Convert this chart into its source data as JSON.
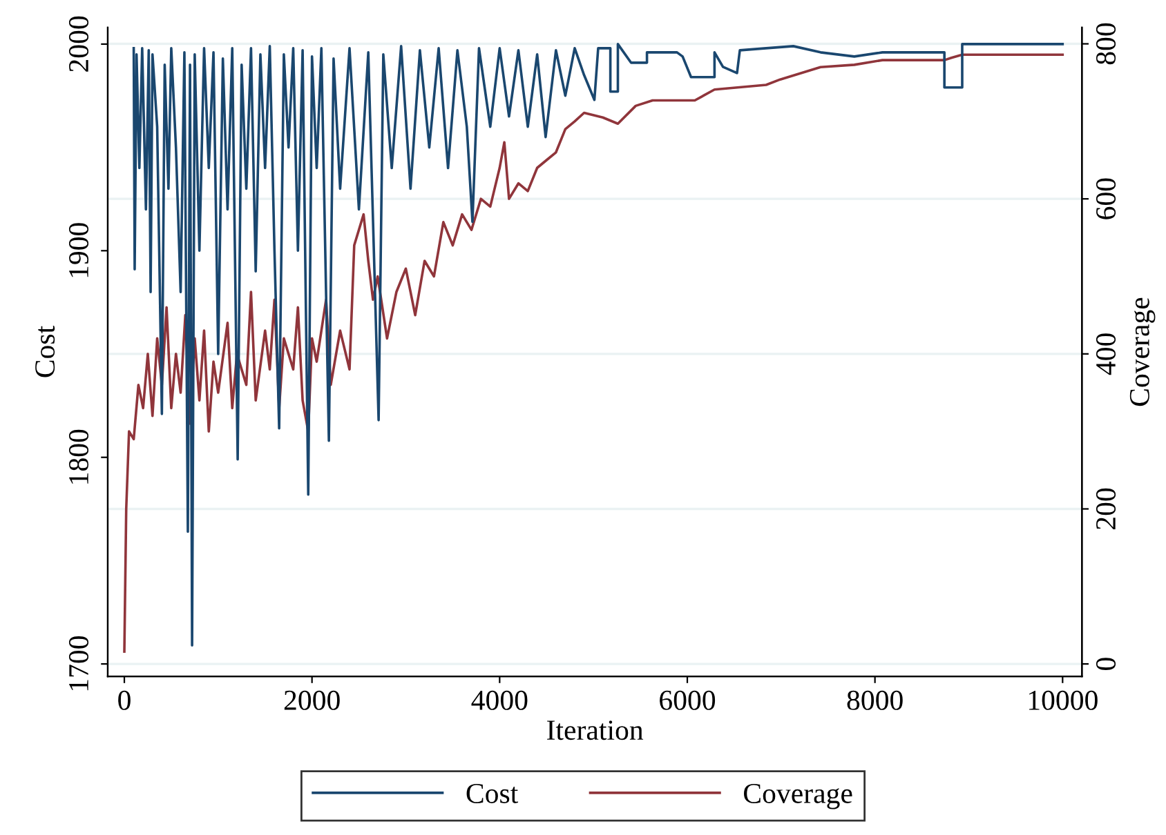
{
  "chart_data": {
    "type": "line",
    "xlabel": "Iteration",
    "ylabel": "Cost",
    "y2label": "Coverage",
    "xlim": [
      -177,
      10206
    ],
    "xticks": [
      0,
      2000,
      4000,
      6000,
      8000,
      10000
    ],
    "ylim": [
      1694,
      2008
    ],
    "yticks": [
      1700,
      1800,
      1900,
      2000
    ],
    "y2lim": [
      -16,
      821
    ],
    "y2ticks": [
      0,
      200,
      400,
      600,
      800
    ],
    "grid": "y2",
    "legend": "bottom",
    "line_style": "solid",
    "marker": "none",
    "series": [
      {
        "name": "Cost",
        "color": "#1a476f",
        "x": [
          100,
          110,
          130,
          160,
          190,
          230,
          260,
          280,
          300,
          350,
          400,
          430,
          470,
          500,
          550,
          600,
          640,
          677,
          700,
          722,
          750,
          800,
          850,
          900,
          950,
          1000,
          1050,
          1100,
          1150,
          1208,
          1250,
          1300,
          1350,
          1400,
          1450,
          1500,
          1550,
          1600,
          1650,
          1700,
          1750,
          1800,
          1850,
          1900,
          1960,
          2000,
          2050,
          2100,
          2180,
          2230,
          2300,
          2400,
          2500,
          2600,
          2710,
          2760,
          2850,
          2950,
          3050,
          3150,
          3250,
          3350,
          3450,
          3550,
          3650,
          3710,
          3780,
          3900,
          4000,
          4100,
          4200,
          4300,
          4400,
          4490,
          4600,
          4700,
          4800,
          4900,
          5010,
          5050,
          5180,
          5180,
          5260,
          5260,
          5400,
          5570,
          5570,
          5890,
          5950,
          6040,
          6290,
          6290,
          6380,
          6530,
          6560,
          6840,
          7130,
          7420,
          7780,
          8080,
          8740,
          8740,
          8930,
          8930,
          10000
        ],
        "values": [
          1998,
          1891,
          1995,
          1940,
          1998,
          1920,
          1997,
          1880,
          1995,
          1960,
          1821,
          1990,
          1930,
          1998,
          1950,
          1880,
          1996,
          1764,
          1990,
          1709,
          1995,
          1900,
          1998,
          1940,
          1996,
          1850,
          1993,
          1920,
          1998,
          1799,
          1990,
          1930,
          1998,
          1890,
          1995,
          1940,
          1999,
          1900,
          1814,
          1995,
          1950,
          1998,
          1900,
          1997,
          1782,
          1994,
          1940,
          1998,
          1808,
          1993,
          1930,
          1998,
          1920,
          1996,
          1818,
          1995,
          1940,
          1999,
          1930,
          1997,
          1950,
          1998,
          1940,
          1997,
          1960,
          1914,
          1998,
          1960,
          1998,
          1965,
          1997,
          1960,
          1995,
          1955,
          1997,
          1975,
          1998,
          1985,
          1973,
          1998,
          1998,
          1977,
          1977,
          2000,
          1991,
          1991,
          1996,
          1996,
          1994,
          1984,
          1984,
          1996,
          1989,
          1986,
          1997,
          1998,
          1999,
          1996,
          1994,
          1996,
          1996,
          1979,
          1979,
          2000,
          2000
        ]
      },
      {
        "name": "Coverage",
        "color": "#90353b",
        "axis": "y2",
        "x": [
          0,
          20,
          50,
          100,
          150,
          200,
          250,
          300,
          350,
          400,
          450,
          500,
          550,
          600,
          650,
          700,
          750,
          800,
          850,
          900,
          950,
          1000,
          1100,
          1150,
          1200,
          1300,
          1350,
          1400,
          1500,
          1550,
          1600,
          1650,
          1700,
          1800,
          1850,
          1900,
          1960,
          2000,
          2050,
          2150,
          2200,
          2300,
          2400,
          2450,
          2550,
          2600,
          2650,
          2700,
          2800,
          2900,
          3000,
          3100,
          3200,
          3300,
          3400,
          3500,
          3600,
          3700,
          3800,
          3900,
          4000,
          4050,
          4100,
          4200,
          4300,
          4400,
          4500,
          4600,
          4700,
          4800,
          4900,
          5100,
          5260,
          5450,
          5630,
          6080,
          6290,
          6840,
          6990,
          7420,
          7780,
          8080,
          8740,
          8815,
          8930,
          10000
        ],
        "values": [
          16,
          200,
          300,
          290,
          360,
          330,
          400,
          320,
          420,
          360,
          460,
          330,
          400,
          350,
          450,
          310,
          420,
          340,
          430,
          300,
          390,
          350,
          440,
          330,
          400,
          360,
          480,
          340,
          430,
          380,
          470,
          330,
          420,
          380,
          460,
          340,
          300,
          420,
          390,
          470,
          360,
          430,
          380,
          540,
          580,
          520,
          470,
          500,
          420,
          480,
          510,
          450,
          520,
          500,
          570,
          540,
          580,
          560,
          600,
          590,
          640,
          673,
          600,
          620,
          610,
          640,
          650,
          660,
          690,
          700,
          711,
          705,
          697,
          720,
          727,
          727,
          741,
          747,
          754,
          770,
          773,
          779,
          779,
          782,
          786,
          786
        ]
      }
    ]
  }
}
